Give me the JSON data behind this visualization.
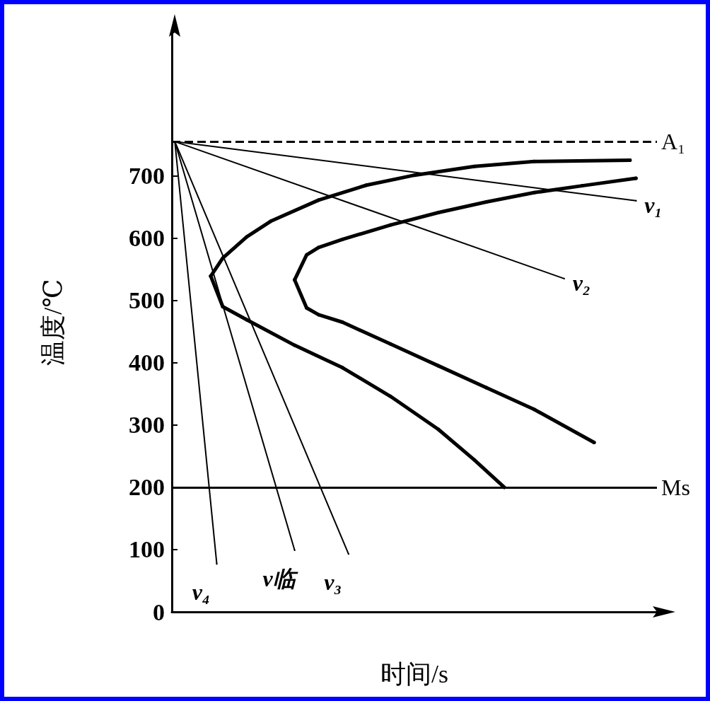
{
  "chart_data": {
    "type": "line",
    "xlabel": "时间/s",
    "ylabel": "温度/℃",
    "categories": [
      null,
      null,
      null,
      null,
      null,
      null,
      null,
      null,
      null,
      null,
      null,
      null,
      null,
      null,
      null,
      null,
      null,
      null,
      null,
      null,
      null,
      null,
      null,
      null,
      null,
      null,
      null,
      null,
      null,
      null,
      null,
      null,
      null,
      null,
      null,
      null,
      null,
      null,
      null,
      null,
      null,
      null,
      null,
      null,
      null,
      null,
      null,
      null,
      null,
      null,
      null,
      null,
      null,
      null,
      null,
      null,
      null,
      null,
      null,
      null,
      null,
      null,
      null,
      null,
      null,
      null,
      null,
      null,
      null,
      null,
      null,
      null,
      null,
      null,
      null,
      null,
      null,
      null,
      null,
      null,
      null
    ],
    "ylim": [
      0,
      930
    ],
    "yticks": [
      0,
      100,
      200,
      300,
      400,
      500,
      600,
      700
    ],
    "tick_labels": "y",
    "grid": false,
    "legend": false,
    "marker": "none",
    "series": [
      {
        "color": "#000000",
        "values": [
          null,
          null,
          null,
          null,
          null,
          null,
          539,
          null,
          568,
          null,
          null,
          null,
          602,
          null,
          null,
          null,
          627,
          null,
          null,
          null,
          null,
          null,
          null,
          null,
          661,
          null,
          null,
          null,
          null,
          null,
          null,
          null,
          685,
          null,
          null,
          null,
          null,
          null,
          null,
          null,
          701,
          null,
          null,
          null,
          null,
          null,
          null,
          null,
          null,
          null,
          715,
          null,
          null,
          null,
          null,
          null,
          null,
          null,
          null,
          null,
          723,
          null,
          null,
          null,
          null,
          null,
          null,
          null,
          null,
          null,
          null,
          null,
          null,
          null,
          null,
          null,
          725,
          null,
          null,
          null,
          null
        ]
      },
      {
        "color": "#000000",
        "values": [
          null,
          null,
          null,
          null,
          null,
          null,
          539,
          null,
          490,
          null,
          null,
          null,
          469,
          null,
          null,
          null,
          null,
          null,
          null,
          null,
          428,
          null,
          null,
          null,
          null,
          null,
          null,
          null,
          392,
          null,
          null,
          null,
          null,
          null,
          null,
          null,
          346,
          null,
          null,
          null,
          null,
          null,
          null,
          null,
          293,
          null,
          null,
          null,
          null,
          null,
          244,
          null,
          null,
          null,
          null,
          200,
          null,
          null,
          null,
          null,
          null,
          null,
          null,
          null,
          null,
          null,
          null,
          null,
          null,
          null,
          null,
          null,
          null,
          null,
          null,
          null,
          null,
          null,
          null,
          null,
          null
        ]
      },
      {
        "color": "#000000",
        "values": [
          null,
          null,
          null,
          null,
          null,
          null,
          null,
          null,
          null,
          null,
          null,
          null,
          null,
          null,
          null,
          null,
          null,
          null,
          null,
          null,
          533,
          null,
          573,
          null,
          585,
          null,
          null,
          null,
          598,
          null,
          null,
          null,
          null,
          null,
          null,
          null,
          621,
          null,
          null,
          null,
          null,
          null,
          null,
          null,
          641,
          null,
          null,
          null,
          null,
          null,
          null,
          null,
          658,
          null,
          null,
          null,
          null,
          null,
          null,
          null,
          673,
          null,
          null,
          null,
          null,
          null,
          null,
          null,
          684,
          null,
          null,
          null,
          null,
          null,
          null,
          null,
          null,
          696,
          null,
          null,
          null
        ]
      },
      {
        "color": "#000000",
        "values": [
          null,
          null,
          null,
          null,
          null,
          null,
          null,
          null,
          null,
          null,
          null,
          null,
          null,
          null,
          null,
          null,
          null,
          null,
          null,
          null,
          533,
          null,
          488,
          null,
          477,
          null,
          null,
          null,
          465,
          null,
          null,
          null,
          null,
          null,
          null,
          null,
          430,
          null,
          null,
          null,
          null,
          null,
          null,
          null,
          395,
          null,
          null,
          null,
          null,
          null,
          null,
          null,
          360,
          null,
          null,
          null,
          null,
          null,
          null,
          null,
          325,
          null,
          null,
          null,
          null,
          null,
          null,
          null,
          null,
          null,
          272,
          null,
          null,
          null,
          null,
          null,
          null,
          null,
          null,
          null,
          null
        ]
      },
      {
        "name": "v₁",
        "color": "#000000",
        "values": [
          755,
          null,
          null,
          null,
          null,
          null,
          null,
          null,
          null,
          null,
          null,
          null,
          null,
          null,
          null,
          null,
          null,
          null,
          null,
          null,
          null,
          null,
          null,
          null,
          null,
          null,
          null,
          null,
          null,
          null,
          null,
          null,
          null,
          null,
          null,
          null,
          null,
          null,
          null,
          null,
          null,
          null,
          null,
          null,
          null,
          null,
          null,
          null,
          null,
          null,
          null,
          null,
          null,
          null,
          null,
          null,
          null,
          null,
          null,
          null,
          null,
          null,
          null,
          null,
          null,
          null,
          null,
          null,
          null,
          null,
          null,
          null,
          null,
          null,
          null,
          null,
          null,
          660,
          null,
          null,
          null
        ]
      },
      {
        "name": "v₂",
        "color": "#000000",
        "values": [
          755,
          null,
          null,
          null,
          null,
          null,
          null,
          null,
          null,
          null,
          null,
          null,
          null,
          null,
          null,
          null,
          null,
          null,
          null,
          null,
          null,
          null,
          null,
          null,
          null,
          null,
          null,
          null,
          null,
          null,
          null,
          null,
          null,
          null,
          null,
          null,
          null,
          null,
          null,
          null,
          null,
          null,
          null,
          null,
          null,
          null,
          null,
          null,
          null,
          null,
          null,
          null,
          null,
          null,
          null,
          null,
          null,
          null,
          null,
          null,
          null,
          null,
          null,
          null,
          null,
          535,
          null,
          null,
          null,
          null,
          null,
          null,
          null,
          null,
          null,
          null,
          null,
          null,
          null,
          null,
          null
        ]
      },
      {
        "name": "v₃",
        "color": "#000000",
        "values": [
          755,
          null,
          null,
          null,
          null,
          null,
          null,
          null,
          null,
          null,
          null,
          null,
          null,
          null,
          null,
          null,
          null,
          null,
          null,
          null,
          null,
          null,
          null,
          null,
          null,
          null,
          null,
          null,
          null,
          93,
          null,
          null,
          null,
          null,
          null,
          null,
          null,
          null,
          null,
          null,
          null,
          null,
          null,
          null,
          null,
          null,
          null,
          null,
          null,
          null,
          null,
          null,
          null,
          null,
          null,
          null,
          null,
          null,
          null,
          null,
          null,
          null,
          null,
          null,
          null,
          null,
          null,
          null,
          null,
          null,
          null,
          null,
          null,
          null,
          null,
          null,
          null,
          null,
          null,
          null,
          null
        ]
      },
      {
        "name": "v临",
        "color": "#000000",
        "values": [
          755,
          null,
          null,
          null,
          null,
          null,
          null,
          null,
          null,
          null,
          null,
          null,
          null,
          null,
          null,
          null,
          null,
          null,
          null,
          null,
          99,
          null,
          null,
          null,
          null,
          null,
          null,
          null,
          null,
          null,
          null,
          null,
          null,
          null,
          null,
          null,
          null,
          null,
          null,
          null,
          null,
          null,
          null,
          null,
          null,
          null,
          null,
          null,
          null,
          null,
          null,
          null,
          null,
          null,
          null,
          null,
          null,
          null,
          null,
          null,
          null,
          null,
          null,
          null,
          null,
          null,
          null,
          null,
          null,
          null,
          null,
          null,
          null,
          null,
          null,
          null,
          null,
          null,
          null,
          null,
          null
        ]
      },
      {
        "name": "v₄",
        "color": "#000000",
        "values": [
          755,
          null,
          null,
          null,
          null,
          null,
          null,
          77,
          null,
          null,
          null,
          null,
          null,
          null,
          null,
          null,
          null,
          null,
          null,
          null,
          null,
          null,
          null,
          null,
          null,
          null,
          null,
          null,
          null,
          null,
          null,
          null,
          null,
          null,
          null,
          null,
          null,
          null,
          null,
          null,
          null,
          null,
          null,
          null,
          null,
          null,
          null,
          null,
          null,
          null,
          null,
          null,
          null,
          null,
          null,
          null,
          null,
          null,
          null,
          null,
          null,
          null,
          null,
          null,
          null,
          null,
          null,
          null,
          null,
          null,
          null,
          null,
          null,
          null,
          null,
          null,
          null,
          null,
          null,
          null,
          null
        ]
      }
    ],
    "ref_lines": [
      {
        "axis": "y",
        "value": 755,
        "label": "A₁",
        "line_style": "dashed",
        "color": "#000000"
      },
      {
        "axis": "y",
        "value": 200,
        "label": "Ms",
        "color": "#000000"
      }
    ]
  }
}
